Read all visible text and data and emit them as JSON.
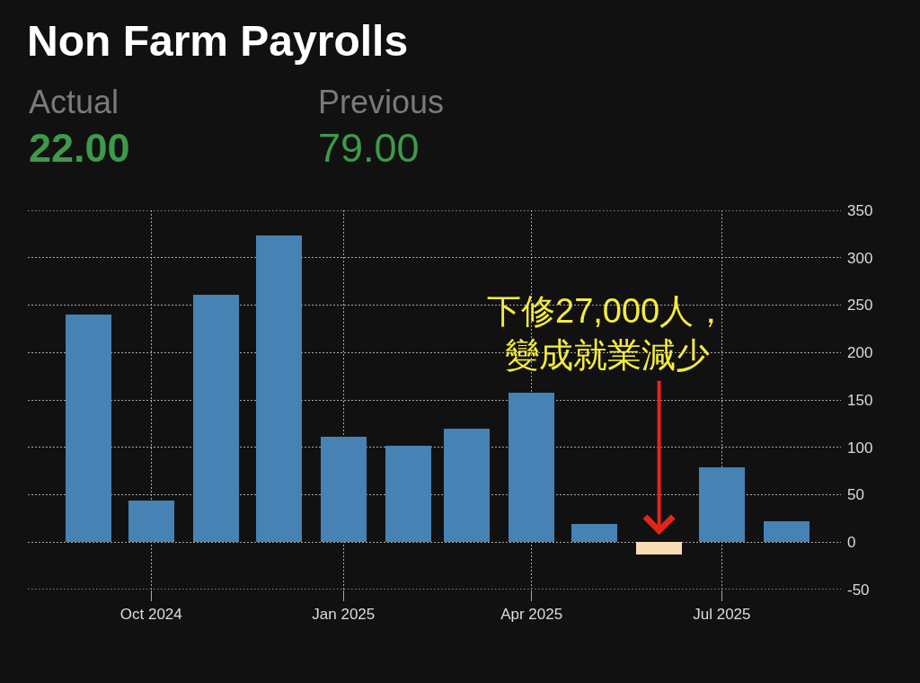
{
  "chart_data": {
    "type": "bar",
    "title": "Non Farm Payrolls",
    "x": [
      "2024-09",
      "2024-10",
      "2024-11",
      "2024-12",
      "2025-01",
      "2025-02",
      "2025-03",
      "2025-04",
      "2025-05",
      "2025-06",
      "2025-07",
      "2025-08"
    ],
    "values": [
      240,
      44,
      261,
      323,
      111,
      102,
      120,
      158,
      19,
      -13,
      79,
      22
    ],
    "colors": [
      "#4682b4",
      "#4682b4",
      "#4682b4",
      "#4682b4",
      "#4682b4",
      "#4682b4",
      "#4682b4",
      "#4682b4",
      "#4682b4",
      "#f8dcb4",
      "#4682b4",
      "#4682b4"
    ],
    "xlim": [
      "2024-08-03",
      "2025-08-27"
    ],
    "xticks": [
      {
        "value": "2024-10",
        "label": "Oct 2024"
      },
      {
        "value": "2025-01",
        "label": "Jan 2025"
      },
      {
        "value": "2025-04",
        "label": "Apr 2025"
      },
      {
        "value": "2025-07",
        "label": "Jul 2025"
      }
    ],
    "ylim": [
      -50,
      350
    ],
    "yticks": [
      -50,
      0,
      50,
      100,
      150,
      200,
      250,
      300,
      350
    ],
    "grid": true,
    "annotations": [
      "Actual",
      "22.00",
      "Previous",
      "79.00",
      {
        "text": "下修27,000人，變成就業減少",
        "x": "2025-06",
        "y": 0
      }
    ]
  }
}
